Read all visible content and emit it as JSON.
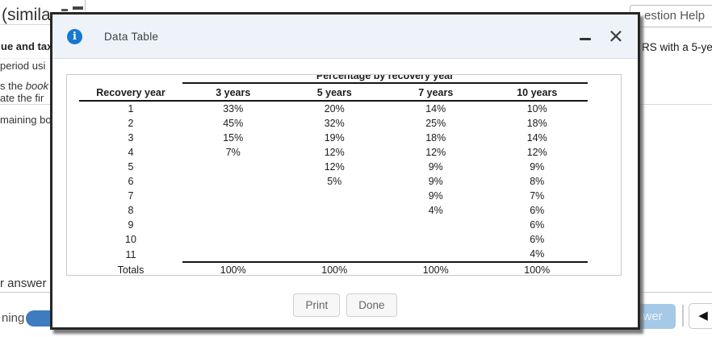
{
  "background": {
    "page_heading_fragment": "(simila",
    "problem_line_bold": "ue and tax",
    "problem_line_2": "period usi",
    "problem_line_3_pre": "s the ",
    "problem_line_3_italic": "book",
    "problem_line_4": "ate the fir",
    "problem_line_5": "maining bo",
    "answer_fragment": "r answer",
    "remaining_fragment": "ning",
    "question_help_fragment": "estion Help",
    "macrs_fragment": "RS with a 5-yea",
    "check_answer_fragment": "swer",
    "previous_arrow_icon": "◀"
  },
  "modal": {
    "title": "Data Table",
    "info_icon_glyph": "i",
    "close_icon_glyph": "×",
    "print_label": "Print",
    "done_label": "Done"
  },
  "table": {
    "span_header": "Percentage by recovery year",
    "columns": [
      "Recovery year",
      "3 years",
      "5 years",
      "7 years",
      "10 years"
    ],
    "rows": [
      {
        "year": "1",
        "values": [
          "33%",
          "20%",
          "14%",
          "10%"
        ]
      },
      {
        "year": "2",
        "values": [
          "45%",
          "32%",
          "25%",
          "18%"
        ]
      },
      {
        "year": "3",
        "values": [
          "15%",
          "19%",
          "18%",
          "14%"
        ]
      },
      {
        "year": "4",
        "values": [
          "7%",
          "12%",
          "12%",
          "12%"
        ]
      },
      {
        "year": "5",
        "values": [
          "",
          "12%",
          "9%",
          "9%"
        ]
      },
      {
        "year": "6",
        "values": [
          "",
          "5%",
          "9%",
          "8%"
        ]
      },
      {
        "year": "7",
        "values": [
          "",
          "",
          "9%",
          "7%"
        ]
      },
      {
        "year": "8",
        "values": [
          "",
          "",
          "4%",
          "6%"
        ]
      },
      {
        "year": "9",
        "values": [
          "",
          "",
          "",
          "6%"
        ]
      },
      {
        "year": "10",
        "values": [
          "",
          "",
          "",
          "6%"
        ]
      },
      {
        "year": "11",
        "values": [
          "",
          "",
          "",
          "4%"
        ]
      }
    ],
    "totals_label": "Totals",
    "totals": [
      "100%",
      "100%",
      "100%",
      "100%"
    ]
  },
  "colors": {
    "dialog_header_bg": "#eef3f9",
    "info_icon_blue": "#1878cf",
    "modal_border": "#262626",
    "table_rule": "#151515",
    "check_answer_bg": "#a5c9e6",
    "remaining_pill_blue": "#3e7cbf"
  }
}
